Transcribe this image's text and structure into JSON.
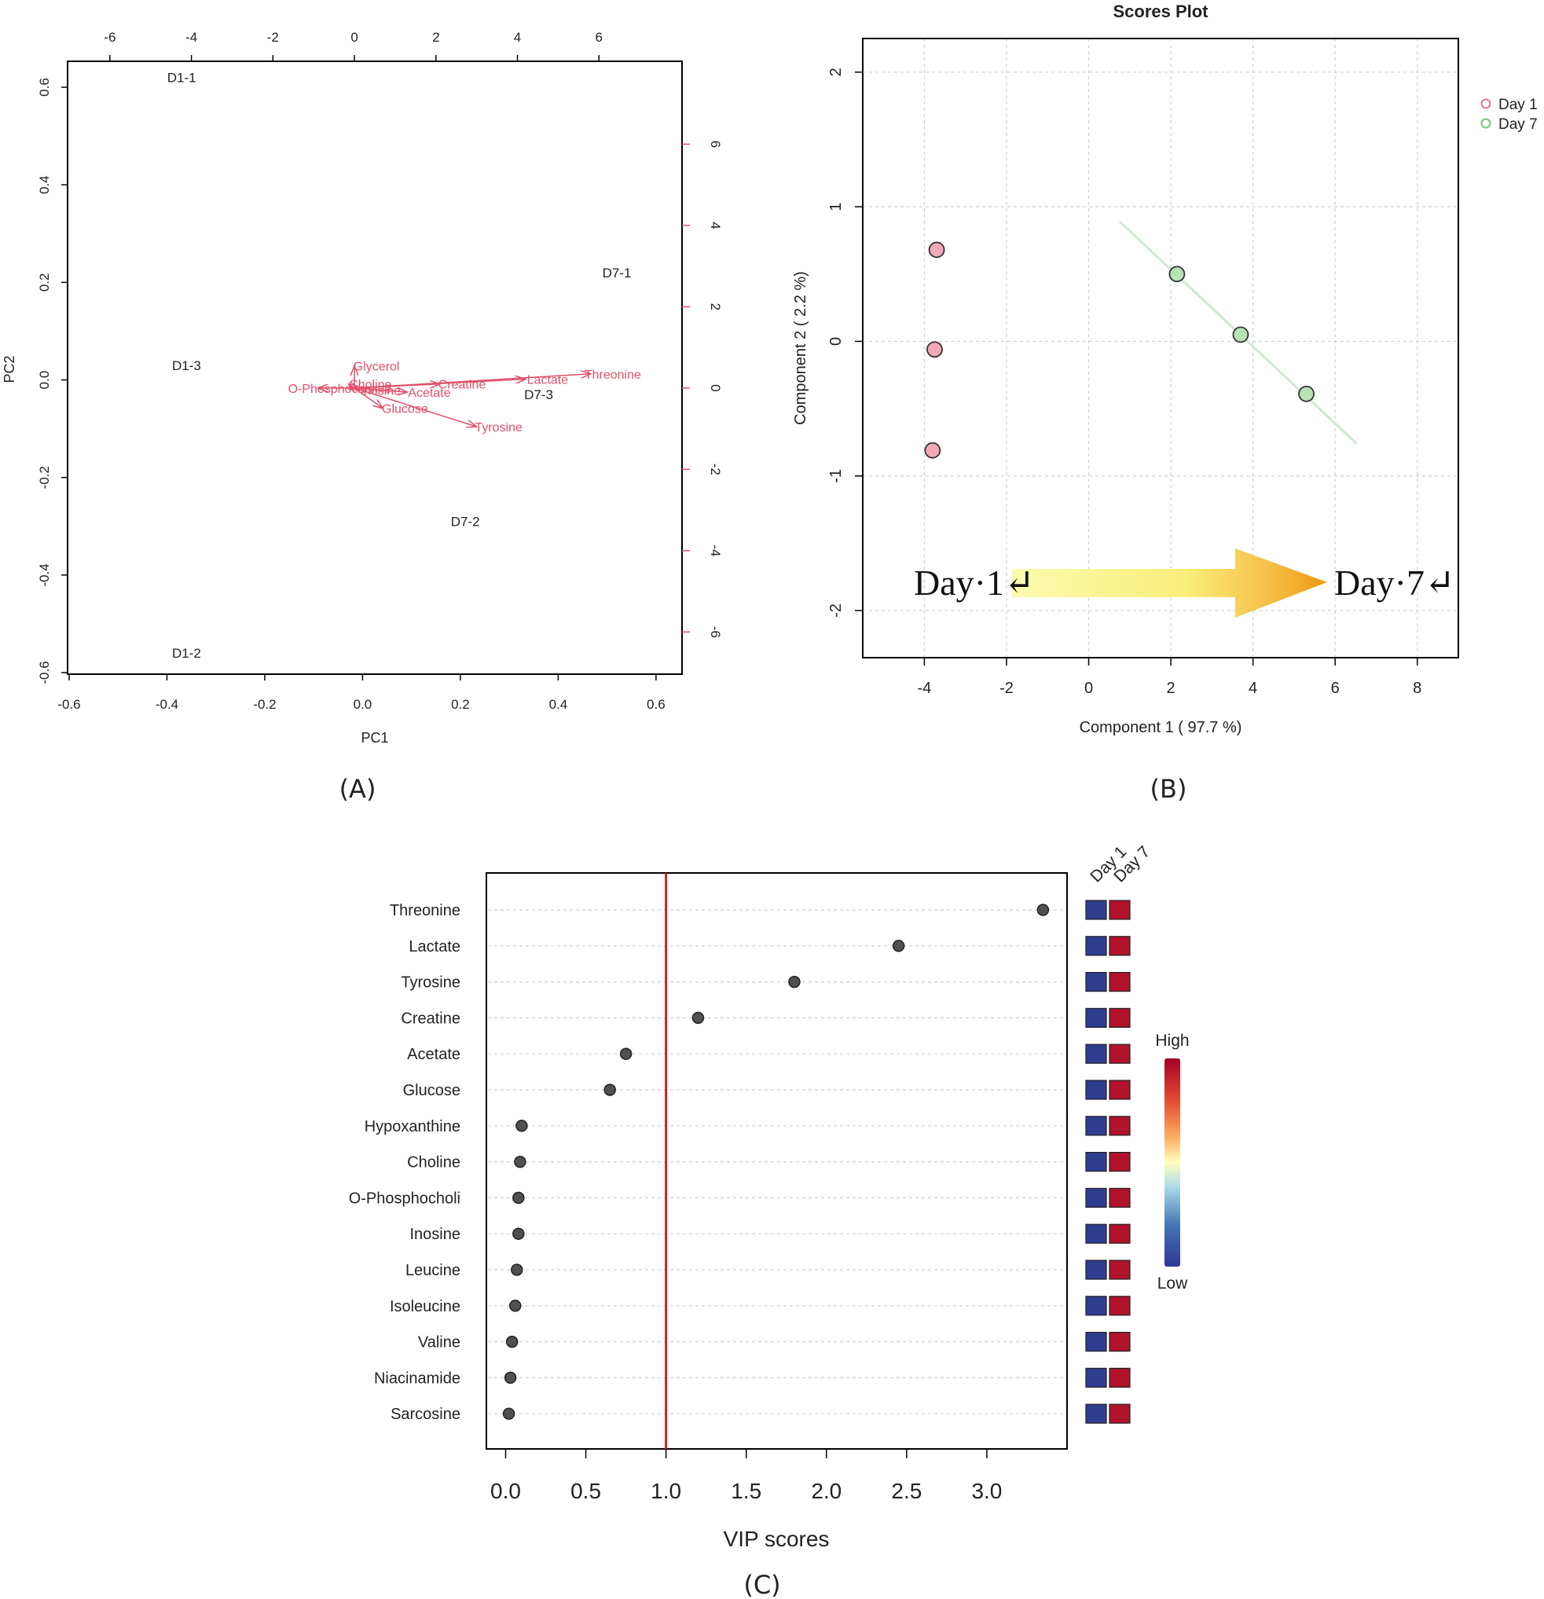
{
  "captions": {
    "a": "(A)",
    "b": "(B)",
    "c": "(C)"
  },
  "chart_data": [
    {
      "type": "scatter",
      "subtype": "biplot",
      "xlabel": "PC1",
      "ylabel": "PC2",
      "xlim": [
        -0.6,
        0.65
      ],
      "ylim": [
        -0.6,
        0.65
      ],
      "x_ticks": [
        "-0.6",
        "-0.4",
        "-0.2",
        "0.0",
        "0.2",
        "0.4",
        "0.6"
      ],
      "y_ticks": [
        "-0.6",
        "-0.4",
        "-0.2",
        "0.0",
        "0.2",
        "0.4",
        "0.6"
      ],
      "top_axis": {
        "range": [
          -7,
          8
        ],
        "ticks": [
          "-6",
          "-4",
          "-2",
          "0",
          "2",
          "4",
          "6"
        ]
      },
      "right_axis": {
        "range": [
          -7,
          8
        ],
        "ticks": [
          "-6",
          "-4",
          "-2",
          "0",
          "2",
          "4",
          "6"
        ]
      },
      "samples": [
        {
          "label": "D1-1",
          "x": -0.37,
          "y": 0.62
        },
        {
          "label": "D1-3",
          "x": -0.36,
          "y": 0.03
        },
        {
          "label": "D1-2",
          "x": -0.36,
          "y": -0.56
        },
        {
          "label": "D7-1",
          "x": 0.52,
          "y": 0.22
        },
        {
          "label": "D7-3",
          "x": 0.36,
          "y": -0.03
        },
        {
          "label": "D7-2",
          "x": 0.21,
          "y": -0.29
        }
      ],
      "loadings": [
        {
          "label": "Threonine",
          "x": 5.8,
          "y": 0.35
        },
        {
          "label": "Lactate",
          "x": 4.2,
          "y": 0.22
        },
        {
          "label": "Tyrosine",
          "x": 3.0,
          "y": -0.95
        },
        {
          "label": "Creatine",
          "x": 2.1,
          "y": 0.1
        },
        {
          "label": "Glucose",
          "x": 0.7,
          "y": -0.5
        },
        {
          "label": "Glycerol",
          "x": 0.0,
          "y": 0.55
        },
        {
          "label": "Choline",
          "x": -0.15,
          "y": 0.1
        },
        {
          "label": "Acetate",
          "x": 1.3,
          "y": -0.1
        },
        {
          "label": "Inosine",
          "x": 0.1,
          "y": -0.05
        },
        {
          "label": "O-Phosphocholine",
          "x": -0.9,
          "y": 0.0
        }
      ]
    },
    {
      "type": "scatter",
      "title": "Scores Plot",
      "xlabel": "Component 1 ( 97.7 %)",
      "ylabel": "Component 2 ( 2.2 %)",
      "xlim": [
        -5.5,
        9
      ],
      "ylim": [
        -2.35,
        2.25
      ],
      "x_ticks": [
        "-4",
        "-2",
        "0",
        "2",
        "4",
        "6",
        "8"
      ],
      "y_ticks": [
        "-2",
        "-1",
        "0",
        "1",
        "2"
      ],
      "legend": {
        "position": "right",
        "entries": [
          {
            "name": "Day 1",
            "color": "#e07890"
          },
          {
            "name": "Day 7",
            "color": "#7cc47c"
          }
        ]
      },
      "series": [
        {
          "name": "Day 1",
          "color": "#f4a9b8",
          "points": [
            {
              "x": -3.7,
              "y": 0.68
            },
            {
              "x": -3.75,
              "y": -0.06
            },
            {
              "x": -3.8,
              "y": -0.81
            }
          ]
        },
        {
          "name": "Day 7",
          "color": "#b7e2b4",
          "points": [
            {
              "x": 2.15,
              "y": 0.5
            },
            {
              "x": 3.7,
              "y": 0.05
            },
            {
              "x": 5.3,
              "y": -0.39
            }
          ]
        }
      ],
      "annotation": {
        "from": "Day·1↵",
        "to": "Day·7↵"
      }
    },
    {
      "type": "scatter",
      "subtype": "vip_dotplot",
      "xlabel": "VIP scores",
      "xlim": [
        -0.12,
        3.5
      ],
      "x_ticks": [
        "0.0",
        "0.5",
        "1.0",
        "1.5",
        "2.0",
        "2.5",
        "3.0"
      ],
      "threshold": 1.0,
      "groups": [
        "Day 1",
        "Day 7"
      ],
      "colorbar": {
        "high": "High",
        "low": "Low"
      },
      "features": [
        {
          "name": "Threonine",
          "vip": 3.35,
          "colors": [
            "#2e3d8f",
            "#b0132a"
          ]
        },
        {
          "name": "Lactate",
          "vip": 2.45,
          "colors": [
            "#2e3d8f",
            "#b0132a"
          ]
        },
        {
          "name": "Tyrosine",
          "vip": 1.8,
          "colors": [
            "#2e3d8f",
            "#b0132a"
          ]
        },
        {
          "name": "Creatine",
          "vip": 1.2,
          "colors": [
            "#2e3d8f",
            "#b0132a"
          ]
        },
        {
          "name": "Acetate",
          "vip": 0.75,
          "colors": [
            "#2e3d8f",
            "#b0132a"
          ]
        },
        {
          "name": "Glucose",
          "vip": 0.65,
          "colors": [
            "#2e3d8f",
            "#b0132a"
          ]
        },
        {
          "name": "Hypoxanthine",
          "vip": 0.1,
          "colors": [
            "#2e3d8f",
            "#b0132a"
          ]
        },
        {
          "name": "Choline",
          "vip": 0.09,
          "colors": [
            "#2e3d8f",
            "#b0132a"
          ]
        },
        {
          "name": "O-Phosphocholi",
          "vip": 0.08,
          "colors": [
            "#2e3d8f",
            "#b0132a"
          ]
        },
        {
          "name": "Inosine",
          "vip": 0.08,
          "colors": [
            "#2e3d8f",
            "#b0132a"
          ]
        },
        {
          "name": "Leucine",
          "vip": 0.07,
          "colors": [
            "#2e3d8f",
            "#b0132a"
          ]
        },
        {
          "name": "Isoleucine",
          "vip": 0.06,
          "colors": [
            "#2e3d8f",
            "#b0132a"
          ]
        },
        {
          "name": "Valine",
          "vip": 0.04,
          "colors": [
            "#2e3d8f",
            "#b0132a"
          ]
        },
        {
          "name": "Niacinamide",
          "vip": 0.03,
          "colors": [
            "#2e3d8f",
            "#b0132a"
          ]
        },
        {
          "name": "Sarcosine",
          "vip": 0.02,
          "colors": [
            "#2e3d8f",
            "#b0132a"
          ]
        }
      ]
    }
  ]
}
